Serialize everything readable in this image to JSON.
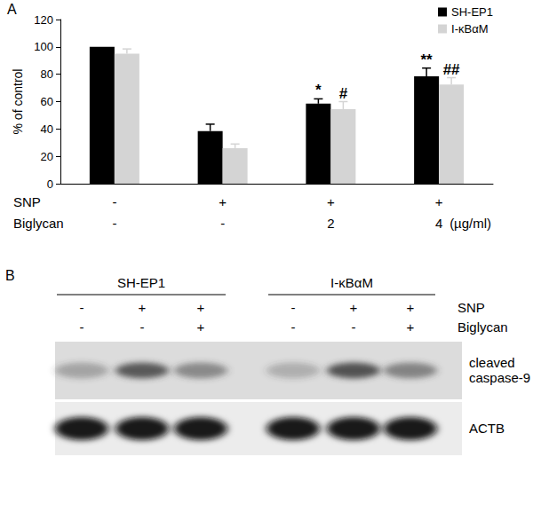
{
  "chart_data": {
    "type": "bar",
    "title": "A",
    "categories": [
      null,
      null,
      null,
      null
    ],
    "x_table": {
      "rows": [
        {
          "name": "SNP",
          "values": [
            "-",
            "+",
            "+",
            "+"
          ]
        },
        {
          "name": "Biglycan",
          "values": [
            "-",
            "-",
            "2",
            "4"
          ]
        }
      ],
      "unit": "(µg/ml)"
    },
    "series": [
      {
        "name": "SH-EP1",
        "color": "#000000",
        "values": [
          100,
          38.5,
          58.5,
          78.5
        ],
        "errors": [
          0,
          5,
          3.5,
          6
        ],
        "significance": [
          null,
          null,
          "*",
          "**"
        ]
      },
      {
        "name": "I-κBαM",
        "color": "#d4d4d4",
        "values": [
          95,
          26,
          54.5,
          72.5
        ],
        "errors": [
          3.5,
          3,
          5.5,
          5
        ],
        "significance": [
          null,
          null,
          "#",
          "##"
        ]
      }
    ],
    "y_label": "% of control",
    "ylim": [
      0,
      120
    ],
    "yticks": [
      0,
      20,
      40,
      60,
      80,
      100,
      120
    ],
    "grid": false,
    "legend": "upper right"
  },
  "blot": {
    "title": "B",
    "groups": [
      "SH-EP1",
      "I-κBαM"
    ],
    "treatment_rows": [
      {
        "name": "SNP",
        "values": [
          "-",
          "+",
          "+",
          "-",
          "+",
          "+"
        ]
      },
      {
        "name": "Biglycan",
        "values": [
          "-",
          "-",
          "+",
          "-",
          "-",
          "+"
        ]
      }
    ],
    "bands": [
      "cleaved caspase-9",
      "ACTB"
    ]
  }
}
